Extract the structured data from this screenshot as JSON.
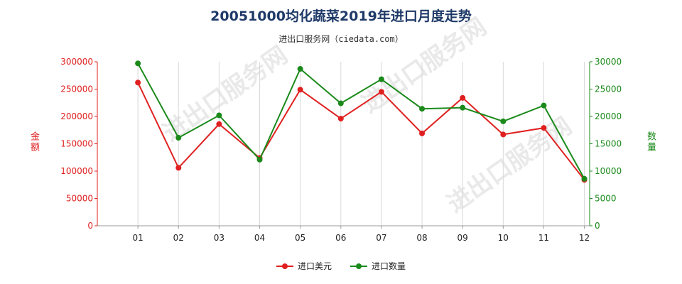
{
  "title": "20051000均化蔬菜2019年进口月度走势",
  "subtitle": "进出口服务网（ciedata.com）",
  "watermark": "进出口服务网",
  "colors": {
    "value": "#e02020",
    "quantity": "#1b8a1b",
    "title": "#1f3a68"
  },
  "chart_data": {
    "type": "line",
    "categories": [
      "01",
      "02",
      "03",
      "04",
      "05",
      "06",
      "07",
      "08",
      "09",
      "10",
      "11",
      "12"
    ],
    "ylabel": "金额",
    "y2label": "数量",
    "ylim": [
      0,
      300000
    ],
    "y2lim": [
      0,
      30000
    ],
    "yticks": [
      "0",
      "50000",
      "100000",
      "150000",
      "200000",
      "250000",
      "300000"
    ],
    "y2ticks": [
      "0",
      "5000",
      "10000",
      "15000",
      "20000",
      "25000",
      "30000"
    ],
    "grid": "vertical",
    "legend_position": "bottom",
    "series": [
      {
        "name": "进口美元",
        "axis": "left",
        "color": "#e02020",
        "values": [
          262000,
          106000,
          186000,
          124000,
          249000,
          196000,
          245000,
          169000,
          234000,
          167000,
          179000,
          84000
        ]
      },
      {
        "name": "进口数量",
        "axis": "right",
        "color": "#1b8a1b",
        "values": [
          29700,
          16100,
          20200,
          12100,
          28700,
          22400,
          26800,
          21400,
          21600,
          19100,
          22000,
          8600
        ]
      }
    ]
  }
}
